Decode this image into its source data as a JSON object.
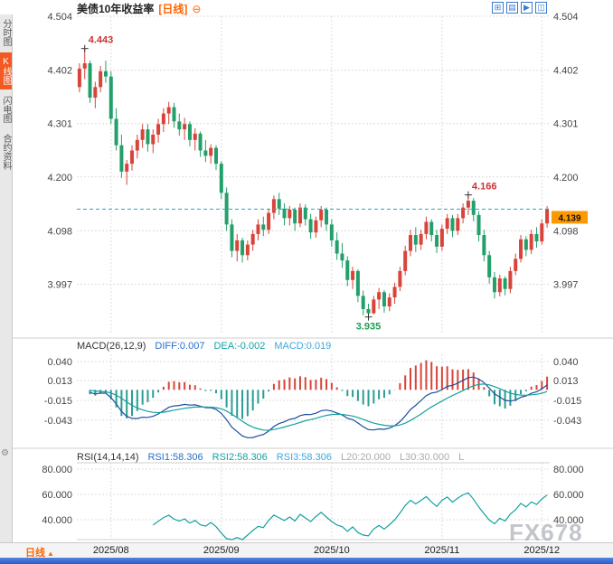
{
  "header": {
    "title": "美债10年收益率",
    "period_tag": "[日线]",
    "collapse_icon": "⊖"
  },
  "sidebar": {
    "tabs": [
      {
        "id": "time",
        "label": "分时图",
        "active": false
      },
      {
        "id": "kline",
        "label": "K线图",
        "active": true
      },
      {
        "id": "flash",
        "label": "闪电图",
        "active": false
      },
      {
        "id": "contract",
        "label": "合约资料",
        "active": false
      }
    ]
  },
  "toolbar_icons": [
    {
      "name": "layout-grid-icon",
      "glyph": "⊞"
    },
    {
      "name": "bar-panel-icon",
      "glyph": "▤"
    },
    {
      "name": "forward-icon",
      "glyph": "▶"
    },
    {
      "name": "window-split-icon",
      "glyph": "◫"
    }
  ],
  "macd_header": {
    "name": "MACD(26,12,9)",
    "diff": "DIFF:0.007",
    "dea": "DEA:-0.002",
    "macd": "MACD:0.019"
  },
  "rsi_header": {
    "name": "RSI(14,14,14)",
    "rsi1": "RSI1:58.306",
    "rsi2": "RSI2:58.306",
    "rsi3": "RSI3:58.306",
    "l20": "L20:20.000",
    "l30": "L30:30.000",
    "l": "L"
  },
  "bottom": {
    "period_label": "日线",
    "arrow": "▲"
  },
  "watermark": "FX678",
  "colors": {
    "up": "#d9443a",
    "down": "#23a06a",
    "grid": "#dcdcdc",
    "separator": "#cfcfcf",
    "last_line": "#2aa6b8",
    "last_box": "#ff9900",
    "diff_line": "#1d4f9e",
    "dea_line": "#16a0a0",
    "hist_up": "#d9443a",
    "hist_down": "#2a9d93",
    "rsi_line": "#16a0a0",
    "annotation_up": "#cc3333",
    "annotation_down": "#1f9d55",
    "cross": "#333333",
    "accent_orange": "#ff6600",
    "active_tab": "#f25a22"
  },
  "chart_data": {
    "type": "candlestick",
    "title": "美债10年收益率 [日线]",
    "ylabel": "收益率",
    "y_ticks": [
      4.504,
      4.402,
      4.301,
      4.2,
      4.098,
      3.997
    ],
    "y_range": [
      3.902,
      4.504
    ],
    "x_tick_labels": [
      "2025/08",
      "2025/09",
      "2025/10",
      "2025/11",
      "2025/12"
    ],
    "x_tick_indices": [
      6,
      27,
      48,
      69,
      88
    ],
    "last_price": 4.139,
    "annotations": [
      {
        "index": 1,
        "value": 4.443,
        "label": "4.443",
        "type": "high"
      },
      {
        "index": 74,
        "value": 4.166,
        "label": "4.166",
        "type": "high"
      },
      {
        "index": 55,
        "value": 3.935,
        "label": "3.935",
        "type": "low"
      }
    ],
    "indicators": {
      "macd": {
        "params": [
          26,
          12,
          9
        ],
        "diff": 0.007,
        "dea": -0.002,
        "macd": 0.019,
        "ticks": [
          0.04,
          0.013,
          -0.015,
          -0.043
        ]
      },
      "rsi": {
        "params": [
          14,
          14,
          14
        ],
        "rsi1": 58.306,
        "rsi2": 58.306,
        "rsi3": 58.306,
        "ticks": [
          80,
          60,
          40
        ]
      }
    },
    "ohlc": [
      [
        4.37,
        4.415,
        4.36,
        4.405
      ],
      [
        4.405,
        4.443,
        4.385,
        4.415
      ],
      [
        4.415,
        4.42,
        4.34,
        4.35
      ],
      [
        4.35,
        4.38,
        4.33,
        4.37
      ],
      [
        4.37,
        4.41,
        4.36,
        4.4
      ],
      [
        4.4,
        4.42,
        4.378,
        4.39
      ],
      [
        4.39,
        4.4,
        4.3,
        4.31
      ],
      [
        4.31,
        4.33,
        4.25,
        4.26
      ],
      [
        4.26,
        4.28,
        4.198,
        4.21
      ],
      [
        4.21,
        4.232,
        4.185,
        4.225
      ],
      [
        4.225,
        4.26,
        4.212,
        4.25
      ],
      [
        4.25,
        4.28,
        4.235,
        4.27
      ],
      [
        4.27,
        4.3,
        4.255,
        4.29
      ],
      [
        4.29,
        4.3,
        4.248,
        4.262
      ],
      [
        4.262,
        4.29,
        4.245,
        4.28
      ],
      [
        4.28,
        4.31,
        4.265,
        4.3
      ],
      [
        4.3,
        4.33,
        4.285,
        4.32
      ],
      [
        4.32,
        4.342,
        4.3,
        4.332
      ],
      [
        4.332,
        4.34,
        4.293,
        4.305
      ],
      [
        4.305,
        4.32,
        4.278,
        4.29
      ],
      [
        4.29,
        4.312,
        4.27,
        4.3
      ],
      [
        4.3,
        4.305,
        4.258,
        4.27
      ],
      [
        4.27,
        4.292,
        4.25,
        4.282
      ],
      [
        4.282,
        4.286,
        4.238,
        4.25
      ],
      [
        4.25,
        4.27,
        4.228,
        4.24
      ],
      [
        4.24,
        4.262,
        4.225,
        4.255
      ],
      [
        4.255,
        4.26,
        4.213,
        4.225
      ],
      [
        4.225,
        4.23,
        4.158,
        4.17
      ],
      [
        4.17,
        4.18,
        4.098,
        4.11
      ],
      [
        4.11,
        4.12,
        4.048,
        4.06
      ],
      [
        4.06,
        4.092,
        4.04,
        4.08
      ],
      [
        4.08,
        4.085,
        4.038,
        4.052
      ],
      [
        4.052,
        4.08,
        4.042,
        4.072
      ],
      [
        4.072,
        4.1,
        4.06,
        4.092
      ],
      [
        4.092,
        4.12,
        4.08,
        4.11
      ],
      [
        4.11,
        4.125,
        4.088,
        4.1
      ],
      [
        4.1,
        4.14,
        4.092,
        4.132
      ],
      [
        4.132,
        4.165,
        4.12,
        4.158
      ],
      [
        4.158,
        4.17,
        4.128,
        4.14
      ],
      [
        4.14,
        4.15,
        4.108,
        4.122
      ],
      [
        4.122,
        4.145,
        4.108,
        4.138
      ],
      [
        4.138,
        4.142,
        4.098,
        4.112
      ],
      [
        4.112,
        4.15,
        4.105,
        4.142
      ],
      [
        4.142,
        4.148,
        4.108,
        4.12
      ],
      [
        4.12,
        4.13,
        4.083,
        4.095
      ],
      [
        4.095,
        4.125,
        4.085,
        4.118
      ],
      [
        4.118,
        4.145,
        4.105,
        4.138
      ],
      [
        4.138,
        4.142,
        4.098,
        4.11
      ],
      [
        4.11,
        4.12,
        4.068,
        4.08
      ],
      [
        4.08,
        4.095,
        4.043,
        4.055
      ],
      [
        4.055,
        4.075,
        4.028,
        4.042
      ],
      [
        4.042,
        4.05,
        3.993,
        4.005
      ],
      [
        4.005,
        4.03,
        3.988,
        4.022
      ],
      [
        4.022,
        4.025,
        3.963,
        3.975
      ],
      [
        3.975,
        3.985,
        3.938,
        3.95
      ],
      [
        3.95,
        3.96,
        3.935,
        3.942
      ],
      [
        3.942,
        3.975,
        3.94,
        3.968
      ],
      [
        3.968,
        3.99,
        3.95,
        3.982
      ],
      [
        3.982,
        3.986,
        3.943,
        3.955
      ],
      [
        3.955,
        3.98,
        3.946,
        3.972
      ],
      [
        3.972,
        4.0,
        3.96,
        3.992
      ],
      [
        3.992,
        4.03,
        3.984,
        4.022
      ],
      [
        4.022,
        4.07,
        4.014,
        4.06
      ],
      [
        4.06,
        4.1,
        4.05,
        4.09
      ],
      [
        4.09,
        4.105,
        4.058,
        4.072
      ],
      [
        4.072,
        4.1,
        4.062,
        4.092
      ],
      [
        4.092,
        4.125,
        4.082,
        4.115
      ],
      [
        4.115,
        4.12,
        4.078,
        4.09
      ],
      [
        4.09,
        4.1,
        4.056,
        4.068
      ],
      [
        4.068,
        4.11,
        4.06,
        4.102
      ],
      [
        4.102,
        4.13,
        4.092,
        4.122
      ],
      [
        4.122,
        4.128,
        4.086,
        4.098
      ],
      [
        4.098,
        4.13,
        4.09,
        4.122
      ],
      [
        4.122,
        4.15,
        4.112,
        4.142
      ],
      [
        4.142,
        4.166,
        4.128,
        4.155
      ],
      [
        4.155,
        4.16,
        4.116,
        4.128
      ],
      [
        4.128,
        4.135,
        4.078,
        4.09
      ],
      [
        4.09,
        4.1,
        4.04,
        4.052
      ],
      [
        4.052,
        4.06,
        3.998,
        4.01
      ],
      [
        4.01,
        4.02,
        3.97,
        3.982
      ],
      [
        3.982,
        4.015,
        3.974,
        4.008
      ],
      [
        4.008,
        4.012,
        3.976,
        3.988
      ],
      [
        3.988,
        4.03,
        3.98,
        4.022
      ],
      [
        4.022,
        4.055,
        4.014,
        4.045
      ],
      [
        4.045,
        4.09,
        4.038,
        4.082
      ],
      [
        4.082,
        4.088,
        4.05,
        4.062
      ],
      [
        4.062,
        4.1,
        4.054,
        4.092
      ],
      [
        4.092,
        4.105,
        4.066,
        4.078
      ],
      [
        4.078,
        4.12,
        4.072,
        4.112
      ],
      [
        4.112,
        4.145,
        4.104,
        4.139
      ]
    ]
  }
}
